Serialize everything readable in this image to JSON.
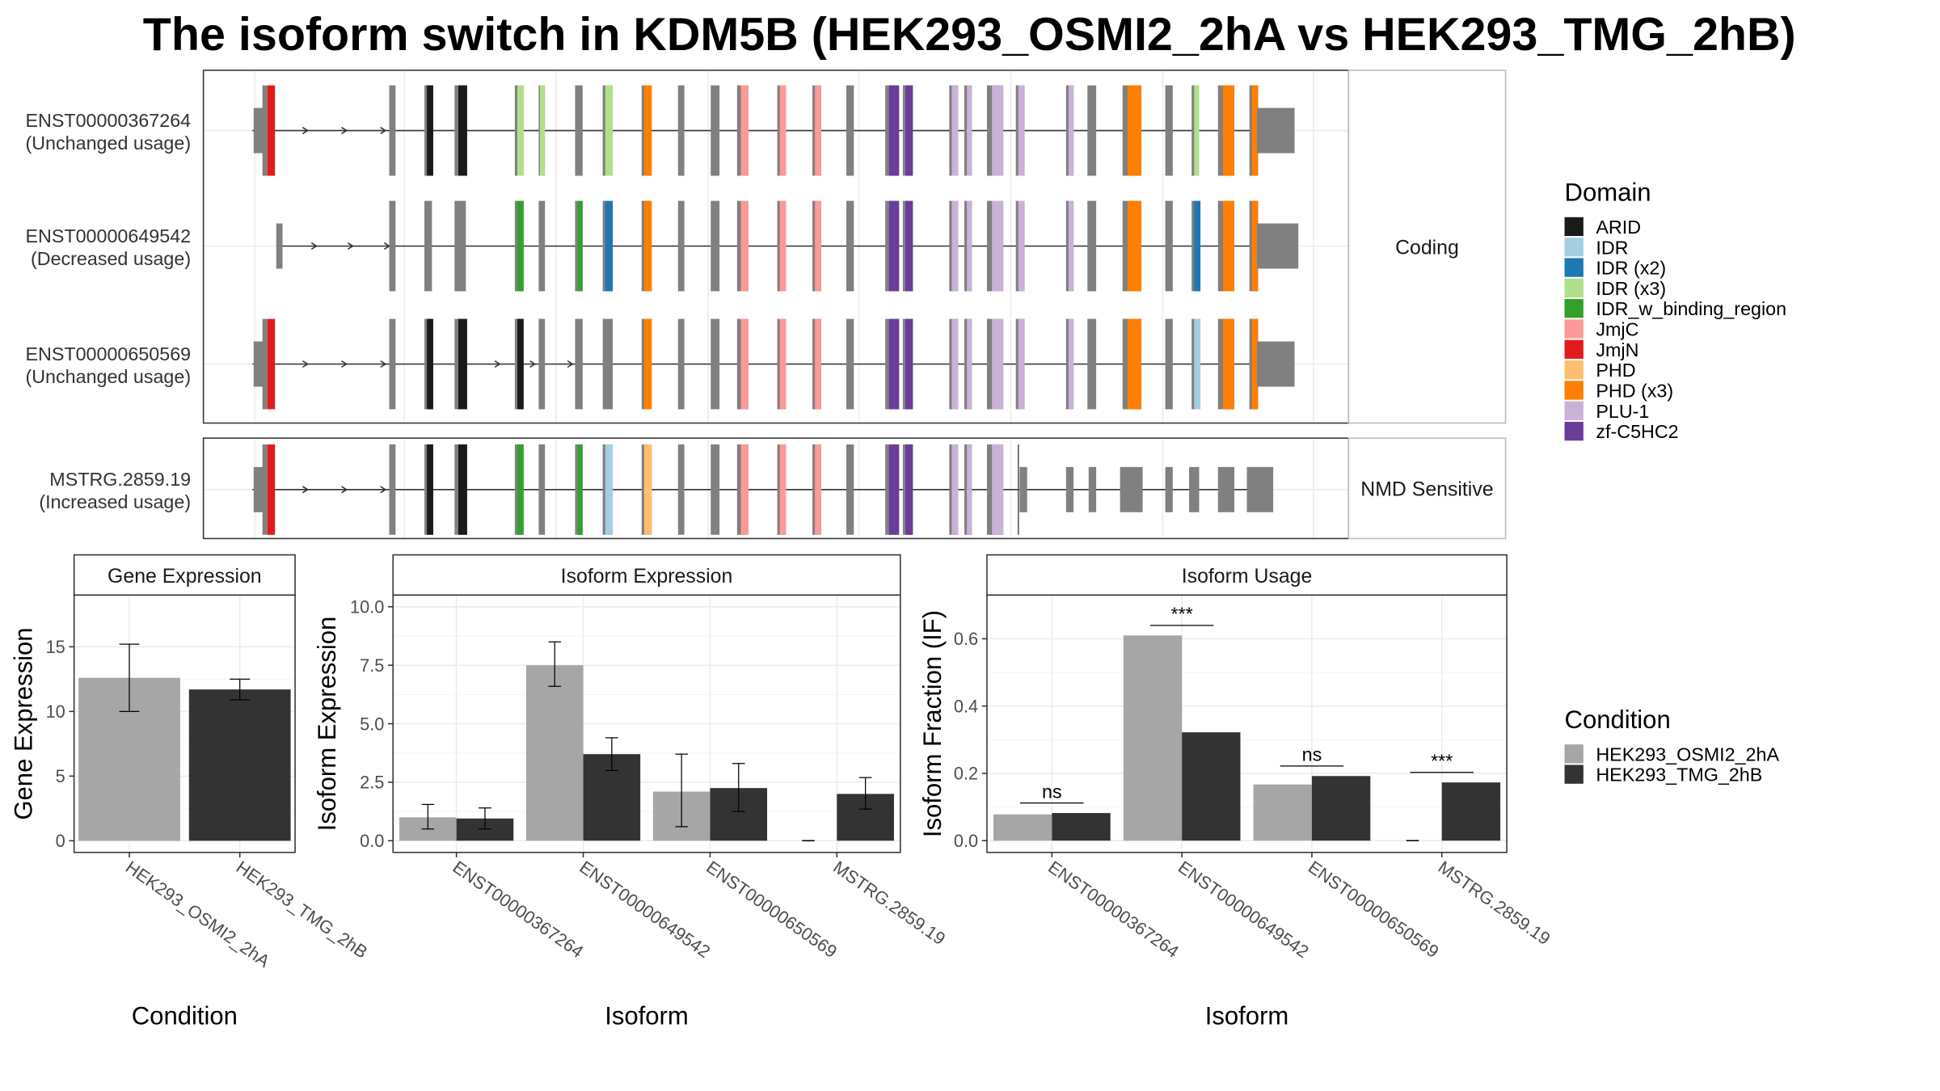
{
  "title": "The isoform switch in KDM5B (HEK293_OSMI2_2hA vs HEK293_TMG_2hB)",
  "structure_panel": {
    "groups": [
      {
        "label": "Coding",
        "isoforms": [
          {
            "id": "ENST00000367264",
            "usage": "(Unchanged usage)"
          },
          {
            "id": "ENST00000649542",
            "usage": "(Decreased usage)"
          },
          {
            "id": "ENST00000650569",
            "usage": "(Unchanged usage)"
          }
        ]
      },
      {
        "label": "NMD Sensitive",
        "isoforms": [
          {
            "id": "MSTRG.2859.19",
            "usage": "(Increased usage)"
          }
        ]
      }
    ]
  },
  "domain_legend": {
    "title": "Domain",
    "items": [
      {
        "name": "ARID",
        "color": "#1a1a1a"
      },
      {
        "name": "IDR",
        "color": "#a6cee3"
      },
      {
        "name": "IDR (x2)",
        "color": "#1f78b4"
      },
      {
        "name": "IDR (x3)",
        "color": "#b2df8a"
      },
      {
        "name": "IDR_w_binding_region",
        "color": "#33a02c"
      },
      {
        "name": "JmjC",
        "color": "#fb9a99"
      },
      {
        "name": "JmjN",
        "color": "#e31a1c"
      },
      {
        "name": "PHD",
        "color": "#fdbf6f"
      },
      {
        "name": "PHD (x3)",
        "color": "#ff7f00"
      },
      {
        "name": "PLU-1",
        "color": "#cab2d6"
      },
      {
        "name": "zf-C5HC2",
        "color": "#6a3d9a"
      }
    ]
  },
  "condition_legend": {
    "title": "Condition",
    "items": [
      {
        "name": "HEK293_OSMI2_2hA",
        "color": "#a6a6a6"
      },
      {
        "name": "HEK293_TMG_2hB",
        "color": "#333333"
      }
    ]
  },
  "chart_data": [
    {
      "type": "bar",
      "title": "Gene Expression",
      "xlabel": "Condition",
      "ylabel": "Gene Expression",
      "categories": [
        "HEK293_OSMI2_2hA",
        "HEK293_TMG_2hB"
      ],
      "values": [
        12.6,
        11.7
      ],
      "error_low": [
        10.0,
        10.9
      ],
      "error_high": [
        15.2,
        12.5
      ],
      "colors": [
        "#a6a6a6",
        "#333333"
      ],
      "yticks": [
        0,
        5,
        10,
        15
      ],
      "ylim": [
        -0.9,
        19
      ]
    },
    {
      "type": "bar",
      "title": "Isoform Expression",
      "xlabel": "Isoform",
      "ylabel": "Isoform Expression",
      "categories": [
        "ENST00000367264",
        "ENST00000649542",
        "ENST00000650569",
        "MSTRG.2859.19"
      ],
      "series": [
        {
          "name": "HEK293_OSMI2_2hA",
          "values": [
            1.0,
            7.5,
            2.1,
            0.0
          ],
          "error_low": [
            0.5,
            6.6,
            0.6,
            0.0
          ],
          "error_high": [
            1.55,
            8.5,
            3.7,
            0.0
          ]
        },
        {
          "name": "HEK293_TMG_2hB",
          "values": [
            0.95,
            3.7,
            2.25,
            2.0
          ],
          "error_low": [
            0.5,
            3.0,
            1.25,
            1.35
          ],
          "error_high": [
            1.4,
            4.4,
            3.3,
            2.7
          ]
        }
      ],
      "yticks": [
        0.0,
        2.5,
        5.0,
        7.5,
        10.0
      ],
      "ytick_labels": [
        "0.0",
        "2.5",
        "5.0",
        "7.5",
        "10.0"
      ],
      "ylim": [
        -0.5,
        10.5
      ]
    },
    {
      "type": "bar",
      "title": "Isoform Usage",
      "xlabel": "Isoform",
      "ylabel": "Isoform Fraction (IF)",
      "categories": [
        "ENST00000367264",
        "ENST00000649542",
        "ENST00000650569",
        "MSTRG.2859.19"
      ],
      "series": [
        {
          "name": "HEK293_OSMI2_2hA",
          "values": [
            0.078,
            0.61,
            0.167,
            0.0
          ]
        },
        {
          "name": "HEK293_TMG_2hB",
          "values": [
            0.082,
            0.322,
            0.192,
            0.173
          ]
        }
      ],
      "significance": [
        "ns",
        "***",
        "ns",
        "***"
      ],
      "yticks": [
        0.0,
        0.2,
        0.4,
        0.6
      ],
      "ytick_labels": [
        "0.0",
        "0.2",
        "0.4",
        "0.6"
      ],
      "ylim": [
        -0.035,
        0.73
      ]
    }
  ]
}
